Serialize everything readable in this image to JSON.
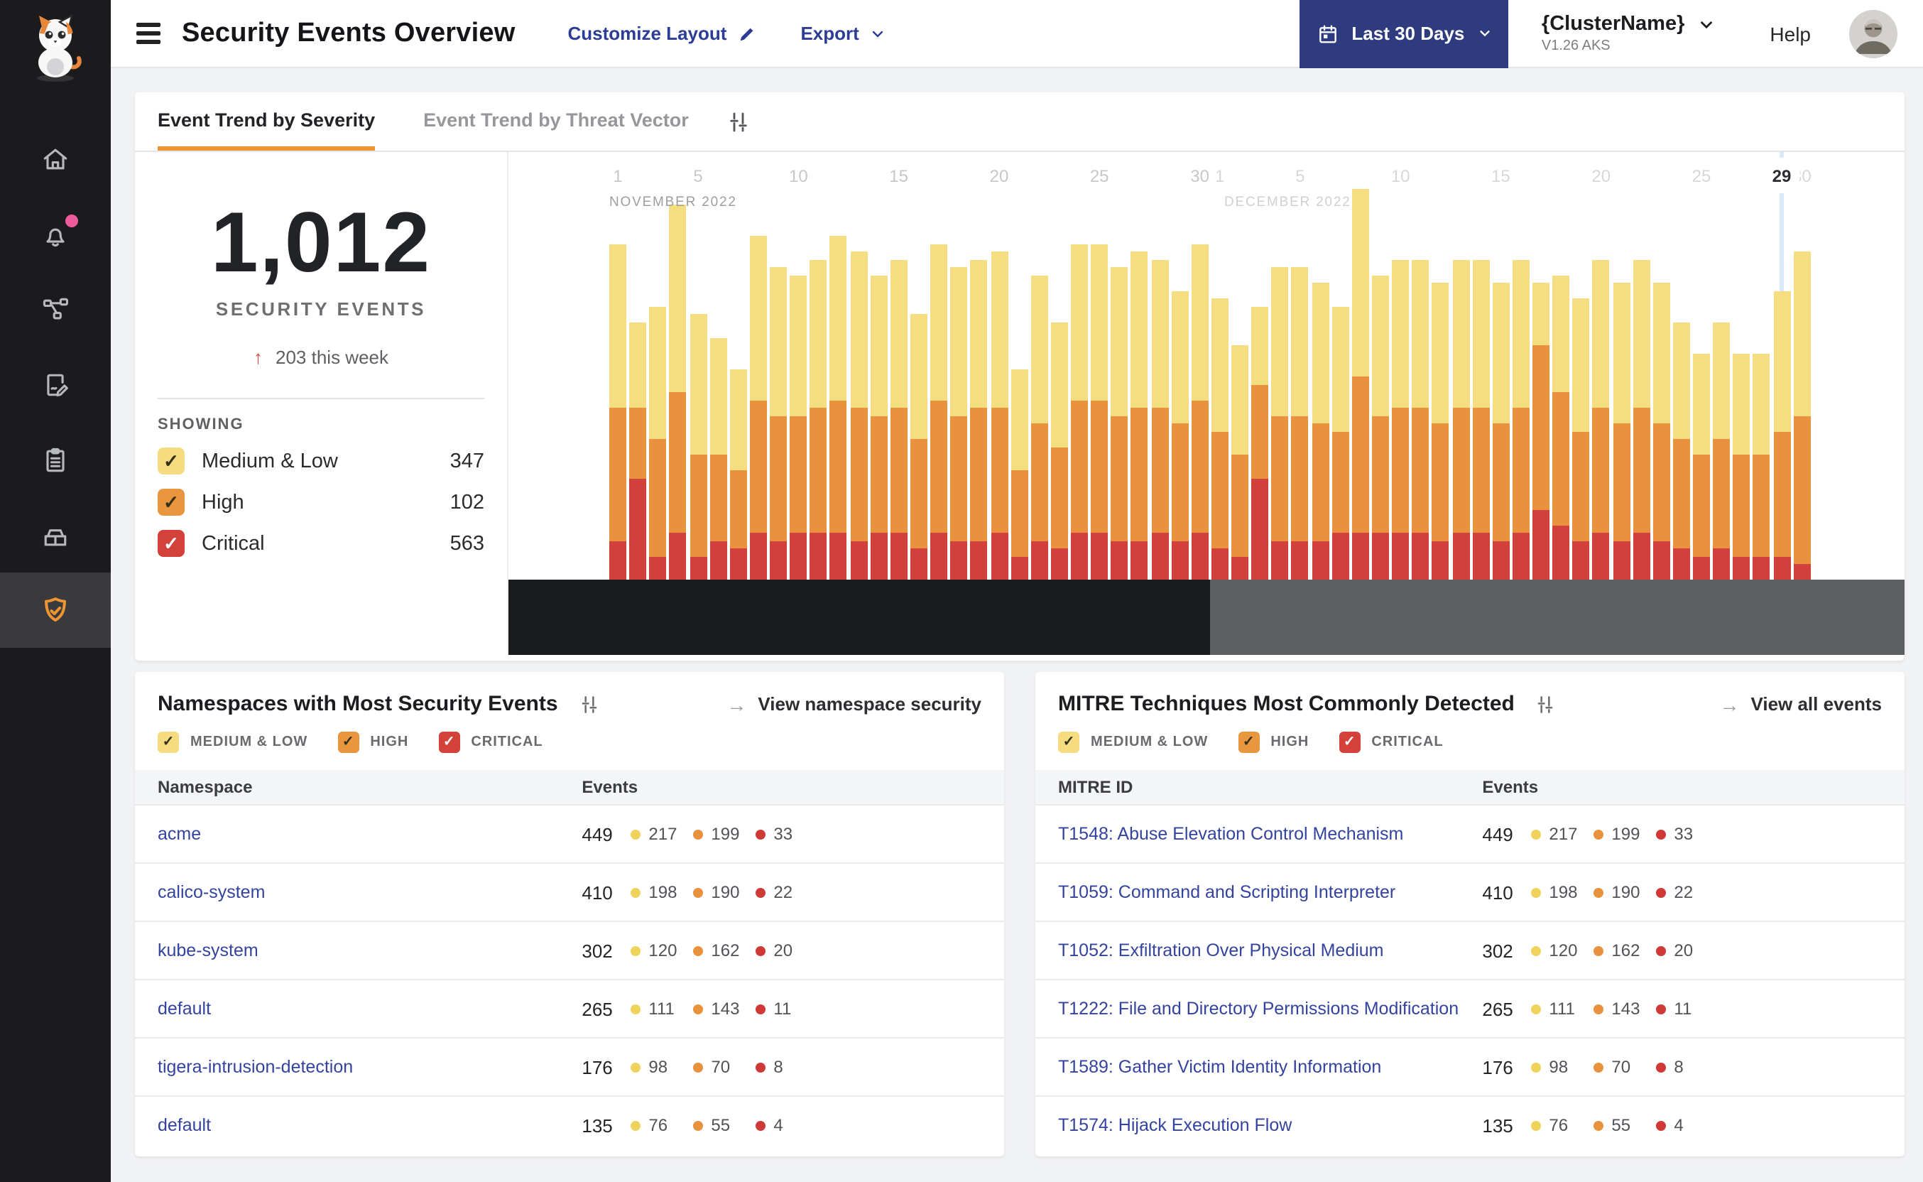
{
  "header": {
    "title": "Security Events Overview",
    "customize_layout_label": "Customize Layout",
    "export_label": "Export",
    "date_range_label": "Last 30 Days",
    "cluster_name": "{ClusterName}",
    "cluster_version": "V1.26 AKS",
    "help_label": "Help"
  },
  "sidebar": {
    "logo": "calico-cat",
    "items": [
      "home",
      "alerts",
      "service-graph",
      "policies",
      "compliance-reports",
      "workloads",
      "threat-defense"
    ],
    "active_item": "threat-defense",
    "alert_dot_color": "#ee5a9b"
  },
  "tabs": [
    {
      "label": "Event Trend by Severity",
      "active": true
    },
    {
      "label": "Event Trend by Threat Vector",
      "active": false
    }
  ],
  "summary": {
    "total": "1,012",
    "total_label": "SECURITY EVENTS",
    "delta_arrow": "↑",
    "delta_text": "203 this week",
    "showing_label": "SHOWING"
  },
  "severities": [
    {
      "key": "medium_low",
      "label": "Medium & Low",
      "chip_label": "MEDIUM & LOW",
      "count": 347,
      "color": "#f5dc80",
      "dot_color": "#efd35d",
      "check_color": "#33301c"
    },
    {
      "key": "high",
      "label": "High",
      "chip_label": "HIGH",
      "count": 102,
      "color": "#e8973f",
      "dot_color": "#e8923d",
      "check_color": "#33301c"
    },
    {
      "key": "critical",
      "label": "Critical",
      "chip_label": "CRITICAL",
      "count": 563,
      "color": "#d4403a",
      "dot_color": "#cf3a37",
      "check_color": "#ffffff"
    }
  ],
  "chart_data": {
    "type": "bar",
    "stacked": true,
    "title": "Event Trend by Severity",
    "ylim": [
      0,
      55
    ],
    "grid": false,
    "legend_position": "left-panel",
    "x": [
      "Nov 1",
      "Nov 2",
      "Nov 3",
      "Nov 4",
      "Nov 5",
      "Nov 6",
      "Nov 7",
      "Nov 8",
      "Nov 9",
      "Nov 10",
      "Nov 11",
      "Nov 12",
      "Nov 13",
      "Nov 14",
      "Nov 15",
      "Nov 16",
      "Nov 17",
      "Nov 18",
      "Nov 19",
      "Nov 20",
      "Nov 21",
      "Nov 22",
      "Nov 23",
      "Nov 24",
      "Nov 25",
      "Nov 26",
      "Nov 27",
      "Nov 28",
      "Nov 29",
      "Nov 30",
      "Dec 1",
      "Dec 2",
      "Dec 3",
      "Dec 4",
      "Dec 5",
      "Dec 6",
      "Dec 7",
      "Dec 8",
      "Dec 9",
      "Dec 10",
      "Dec 11",
      "Dec 12",
      "Dec 13",
      "Dec 14",
      "Dec 15",
      "Dec 16",
      "Dec 17",
      "Dec 18",
      "Dec 19",
      "Dec 20",
      "Dec 21",
      "Dec 22",
      "Dec 23",
      "Dec 24",
      "Dec 25",
      "Dec 26",
      "Dec 27",
      "Dec 28",
      "Dec 29",
      "Dec 30"
    ],
    "series": [
      {
        "key": "medium_low",
        "name": "Medium & Low",
        "color": "#f5dd82",
        "values": [
          21,
          11,
          17,
          24,
          18,
          15,
          13,
          21,
          19,
          18,
          19,
          21,
          20,
          18,
          19,
          16,
          20,
          19,
          19,
          20,
          13,
          19,
          16,
          20,
          20,
          19,
          20,
          19,
          17,
          20,
          17,
          14,
          10,
          19,
          19,
          18,
          16,
          24,
          18,
          19,
          19,
          18,
          19,
          19,
          18,
          19,
          8,
          15,
          17,
          19,
          18,
          19,
          18,
          15,
          13,
          15,
          13,
          13,
          18,
          21
        ]
      },
      {
        "key": "high",
        "name": "High",
        "color": "#e8923d",
        "values": [
          17,
          9,
          15,
          18,
          13,
          11,
          10,
          17,
          16,
          15,
          16,
          17,
          17,
          15,
          16,
          14,
          17,
          16,
          17,
          16,
          11,
          15,
          13,
          17,
          17,
          16,
          17,
          16,
          15,
          17,
          15,
          13,
          12,
          16,
          16,
          15,
          13,
          20,
          15,
          16,
          16,
          15,
          16,
          16,
          15,
          16,
          21,
          17,
          14,
          16,
          15,
          16,
          15,
          14,
          13,
          14,
          13,
          13,
          16,
          19
        ]
      },
      {
        "key": "critical",
        "name": "Critical",
        "color": "#d2403c",
        "values": [
          5,
          13,
          3,
          6,
          3,
          5,
          4,
          6,
          5,
          6,
          6,
          6,
          5,
          6,
          6,
          4,
          6,
          5,
          5,
          6,
          3,
          5,
          4,
          6,
          6,
          5,
          5,
          6,
          5,
          6,
          4,
          3,
          13,
          5,
          5,
          5,
          6,
          6,
          6,
          6,
          6,
          5,
          6,
          6,
          5,
          6,
          9,
          7,
          5,
          6,
          5,
          6,
          5,
          4,
          3,
          4,
          3,
          3,
          3,
          2
        ]
      }
    ],
    "months": [
      {
        "label": "NOVEMBER 2022",
        "start_index": 0,
        "ticks": [
          1,
          5,
          10,
          15,
          20,
          25,
          30
        ]
      },
      {
        "label": "DECEMBER 2022",
        "start_index": 30,
        "ticks": [
          1,
          5,
          10,
          15,
          20,
          25,
          30
        ]
      }
    ],
    "highlight": {
      "index": 58,
      "label": "29"
    }
  },
  "cards": {
    "namespaces": {
      "title": "Namespaces with Most Security Events",
      "link": "View namespace security",
      "link_arrow": "→",
      "columns": [
        "Namespace",
        "Events"
      ],
      "rows": [
        {
          "name": "acme",
          "total": 449,
          "medium_low": 217,
          "high": 199,
          "critical": 33
        },
        {
          "name": "calico-system",
          "total": 410,
          "medium_low": 198,
          "high": 190,
          "critical": 22
        },
        {
          "name": "kube-system",
          "total": 302,
          "medium_low": 120,
          "high": 162,
          "critical": 20
        },
        {
          "name": "default",
          "total": 265,
          "medium_low": 111,
          "high": 143,
          "critical": 11
        },
        {
          "name": "tigera-intrusion-detection",
          "total": 176,
          "medium_low": 98,
          "high": 70,
          "critical": 8
        },
        {
          "name": "default",
          "total": 135,
          "medium_low": 76,
          "high": 55,
          "critical": 4
        }
      ]
    },
    "mitre": {
      "title": "MITRE Techniques Most Commonly Detected",
      "link": "View all events",
      "link_arrow": "→",
      "columns": [
        "MITRE ID",
        "Events"
      ],
      "rows": [
        {
          "name": "T1548: Abuse Elevation Control Mechanism",
          "total": 449,
          "medium_low": 217,
          "high": 199,
          "critical": 33
        },
        {
          "name": "T1059: Command and Scripting Interpreter",
          "total": 410,
          "medium_low": 198,
          "high": 190,
          "critical": 22
        },
        {
          "name": "T1052: Exfiltration Over Physical Medium",
          "total": 302,
          "medium_low": 120,
          "high": 162,
          "critical": 20
        },
        {
          "name": "T1222: File and Directory Permissions Modification",
          "total": 265,
          "medium_low": 111,
          "high": 143,
          "critical": 11
        },
        {
          "name": "T1589: Gather Victim Identity Information",
          "total": 176,
          "medium_low": 98,
          "high": 70,
          "critical": 8
        },
        {
          "name": "T1574: Hijack Execution Flow",
          "total": 135,
          "medium_low": 76,
          "high": 55,
          "critical": 4
        }
      ]
    }
  }
}
